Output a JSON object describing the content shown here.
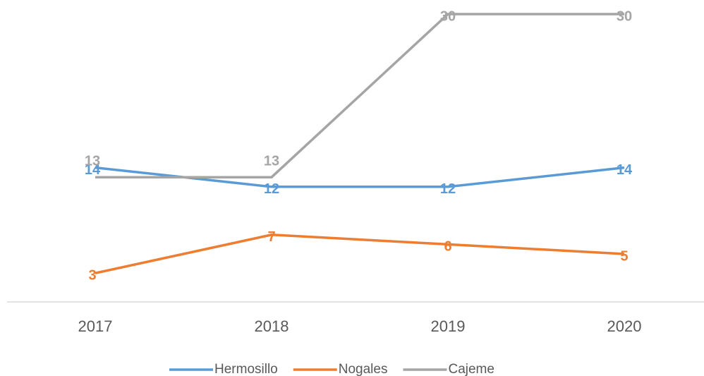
{
  "chart_data": {
    "type": "line",
    "categories": [
      "2017",
      "2018",
      "2019",
      "2020"
    ],
    "series": [
      {
        "name": "Hermosillo",
        "color": "#5b9bd5",
        "values": [
          14,
          12,
          12,
          14
        ]
      },
      {
        "name": "Nogales",
        "color": "#ed7d31",
        "values": [
          3,
          7,
          6,
          5
        ]
      },
      {
        "name": "Cajeme",
        "color": "#a5a5a5",
        "values": [
          13,
          13,
          30,
          30
        ]
      }
    ],
    "legend": "bottom"
  }
}
